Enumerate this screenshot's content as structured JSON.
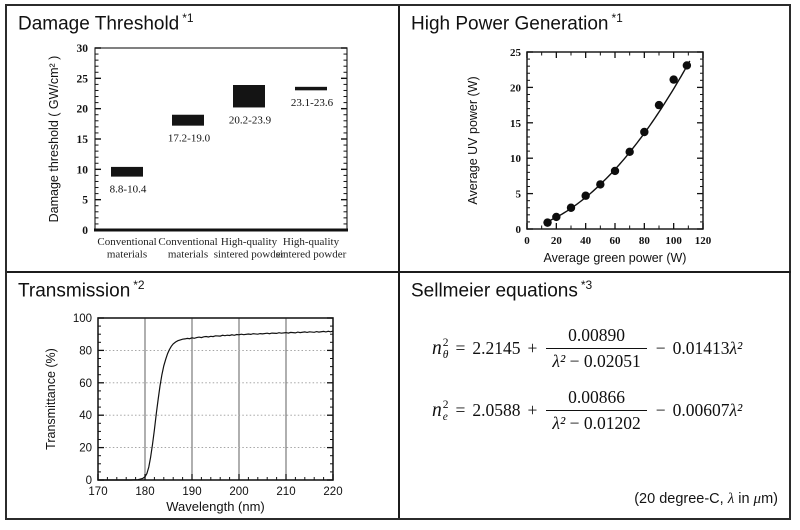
{
  "panels": {
    "damage": {
      "title": "Damage Threshold",
      "ref": "*1"
    },
    "power": {
      "title": "High Power Generation",
      "ref": "*1"
    },
    "transmission": {
      "title": "Transmission",
      "ref": "*2"
    },
    "sellmeier": {
      "title": "Sellmeier equations",
      "ref": "*3",
      "equations": [
        {
          "base": "n",
          "sup": "2",
          "sub": "θ",
          "rel": "=",
          "c0": "2.2145",
          "op1": "+",
          "num": "0.00890",
          "den_var": "λ²",
          "den_op": " − ",
          "den_c": "0.02051",
          "op2": "−",
          "tail_c": "0.01413",
          "tail_var": "λ²"
        },
        {
          "base": "n",
          "sup": "2",
          "sub": "e",
          "rel": "=",
          "c0": "2.0588",
          "op1": "+",
          "num": "0.00866",
          "den_var": "λ²",
          "den_op": " − ",
          "den_c": "0.01202",
          "op2": "−",
          "tail_c": "0.00607",
          "tail_var": "λ²"
        }
      ],
      "note_p1": "(20 degree-C, ",
      "note_lambda": "λ",
      "note_p2": " in ",
      "note_mu": "μ",
      "note_p3": "m)"
    }
  },
  "chart_data": [
    {
      "id": "damage-threshold",
      "type": "bar",
      "title": "Damage Threshold",
      "ylabel": "Damage threshold ( GW/cm² )",
      "ylim": [
        0,
        30
      ],
      "yticks": [
        0,
        5,
        10,
        15,
        20,
        25,
        30
      ],
      "grid": false,
      "categories": [
        [
          "Conventional",
          "materials"
        ],
        [
          "Conventional",
          "materials"
        ],
        [
          "High-quality",
          "sintered powder"
        ],
        [
          "High-quality",
          "sintered powder"
        ]
      ],
      "bars": [
        {
          "low": 8.8,
          "high": 10.4,
          "label": "8.8-10.4"
        },
        {
          "low": 17.2,
          "high": 19.0,
          "label": "17.2-19.0"
        },
        {
          "low": 20.2,
          "high": 23.9,
          "label": "20.2-23.9"
        },
        {
          "low": 23.1,
          "high": 23.6,
          "label": "23.1-23.6"
        }
      ]
    },
    {
      "id": "high-power-generation",
      "type": "scatter",
      "title": "High Power Generation",
      "xlabel": "Average green power (W)",
      "ylabel": "Average UV power (W)",
      "xlim": [
        0,
        120
      ],
      "ylim": [
        0,
        25
      ],
      "xticks": [
        0,
        20,
        40,
        60,
        80,
        100,
        120
      ],
      "yticks": [
        0,
        5,
        10,
        15,
        20,
        25
      ],
      "grid": false,
      "points": [
        [
          14,
          0.9
        ],
        [
          20,
          1.7
        ],
        [
          30,
          3.0
        ],
        [
          40,
          4.7
        ],
        [
          50,
          6.3
        ],
        [
          60,
          8.2
        ],
        [
          70,
          10.9
        ],
        [
          80,
          13.7
        ],
        [
          90,
          17.5
        ],
        [
          100,
          21.1
        ],
        [
          109,
          23.1
        ]
      ],
      "fit": {
        "type": "quadratic",
        "a": 0.001441,
        "b": 0.0539,
        "x_range": [
          12,
          111.5
        ]
      }
    },
    {
      "id": "transmission",
      "type": "line",
      "title": "Transmission",
      "xlabel": "Wavelength (nm)",
      "ylabel": "Transmittance (%)",
      "xlim": [
        170,
        220
      ],
      "ylim": [
        0,
        100
      ],
      "xticks": [
        170,
        180,
        190,
        200,
        210,
        220
      ],
      "yticks": [
        0,
        20,
        40,
        60,
        80,
        100
      ],
      "grid": {
        "vertical": [
          180,
          190,
          200,
          210
        ],
        "horizontal": [
          20,
          40,
          60,
          80
        ]
      },
      "points": [
        [
          170,
          0
        ],
        [
          174,
          0
        ],
        [
          177,
          0
        ],
        [
          178.5,
          0.2
        ],
        [
          179.5,
          1
        ],
        [
          180,
          2
        ],
        [
          180.4,
          4
        ],
        [
          180.8,
          8
        ],
        [
          181.2,
          14
        ],
        [
          181.6,
          22
        ],
        [
          182,
          31
        ],
        [
          182.4,
          41
        ],
        [
          182.8,
          50
        ],
        [
          183.2,
          58
        ],
        [
          183.6,
          65
        ],
        [
          184,
          70.5
        ],
        [
          184.4,
          74.5
        ],
        [
          184.8,
          78
        ],
        [
          185.2,
          80.5
        ],
        [
          185.6,
          82.5
        ],
        [
          186,
          84
        ],
        [
          186.5,
          85.2
        ],
        [
          187,
          86
        ],
        [
          187.5,
          86.5
        ],
        [
          188,
          86.9
        ],
        [
          188.5,
          87.1
        ],
        [
          189,
          87.4
        ],
        [
          189.5,
          87.2
        ],
        [
          190,
          87.8
        ],
        [
          190.5,
          87.5
        ],
        [
          191,
          87.9
        ],
        [
          191.5,
          88.2
        ],
        [
          192,
          87.9
        ],
        [
          192.5,
          88.4
        ],
        [
          193,
          88.6
        ],
        [
          193.5,
          88.3
        ],
        [
          194,
          88.7
        ],
        [
          194.5,
          88.5
        ],
        [
          195,
          89
        ],
        [
          196,
          88.8
        ],
        [
          196.5,
          89.3
        ],
        [
          197,
          89.1
        ],
        [
          197.5,
          89.4
        ],
        [
          198,
          89.2
        ],
        [
          198.5,
          89.6
        ],
        [
          199,
          89.3
        ],
        [
          199.5,
          89.8
        ],
        [
          200,
          89.6
        ],
        [
          200.5,
          90
        ],
        [
          201,
          89.7
        ],
        [
          202,
          90.1
        ],
        [
          202.5,
          89.9
        ],
        [
          203,
          90.3
        ],
        [
          204,
          90
        ],
        [
          204.5,
          90.4
        ],
        [
          205,
          90.2
        ],
        [
          206,
          90.6
        ],
        [
          206.5,
          90.3
        ],
        [
          207,
          90.7
        ],
        [
          208,
          90.5
        ],
        [
          208.5,
          90.9
        ],
        [
          209,
          90.6
        ],
        [
          210,
          91
        ],
        [
          210.5,
          90.7
        ],
        [
          211,
          91.1
        ],
        [
          212,
          90.8
        ],
        [
          212.5,
          91.3
        ],
        [
          213,
          91
        ],
        [
          214,
          91.4
        ],
        [
          214.5,
          91.1
        ],
        [
          215,
          91.5
        ],
        [
          216,
          91.2
        ],
        [
          216.5,
          91.6
        ],
        [
          217,
          91.3
        ],
        [
          218,
          91.7
        ],
        [
          218.5,
          91.4
        ],
        [
          219,
          91.8
        ],
        [
          219.5,
          91.5
        ],
        [
          220,
          91.9
        ]
      ]
    }
  ]
}
